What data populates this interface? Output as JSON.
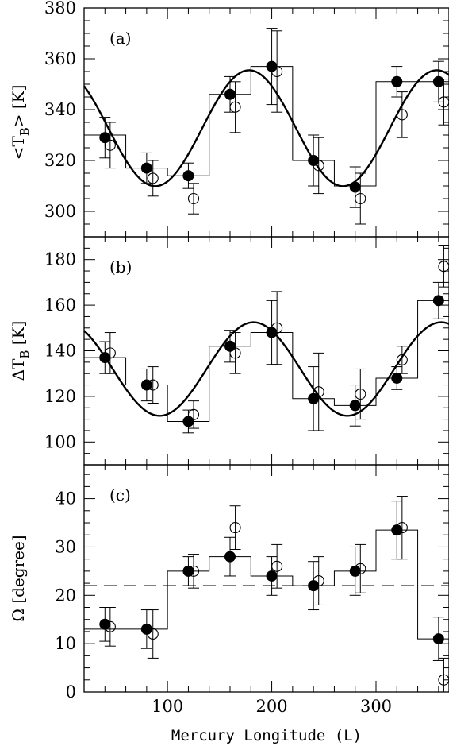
{
  "chart_data": [
    {
      "id": "a",
      "type": "scatter",
      "panel_label": "(a)",
      "ylabel": "<T_B> [K]",
      "ylim": [
        290,
        380
      ],
      "yticks": [
        300,
        320,
        340,
        360,
        380
      ],
      "xlim": [
        20,
        370
      ],
      "step": {
        "edges": [
          20,
          60,
          100,
          140,
          180,
          220,
          260,
          300,
          340,
          370
        ],
        "values": [
          330,
          317,
          314,
          346,
          357,
          320,
          310,
          351,
          351
        ]
      },
      "series": [
        {
          "marker": "filled",
          "x": [
            40,
            80,
            120,
            160,
            200,
            240,
            280,
            320,
            360
          ],
          "y": [
            329,
            317,
            314,
            346,
            357,
            320,
            309.5,
            351,
            351
          ],
          "yerr": [
            8,
            6,
            5,
            7,
            15,
            10,
            8,
            6,
            8
          ]
        },
        {
          "marker": "open",
          "x": [
            45,
            86,
            125,
            165,
            205,
            245,
            285,
            325,
            365
          ],
          "y": [
            326,
            313,
            305,
            341,
            355,
            318,
            305,
            338,
            343
          ],
          "yerr": [
            9,
            7,
            6,
            10,
            16,
            11,
            10,
            9,
            9
          ]
        }
      ],
      "fit": {
        "mean": 332.7,
        "amplitude": 22.8,
        "peak_x": 178.3,
        "period": 180
      }
    },
    {
      "id": "b",
      "type": "scatter",
      "panel_label": "(b)",
      "ylabel": "ΔT_B [K]",
      "ylim": [
        90,
        190
      ],
      "yticks": [
        100,
        120,
        140,
        160,
        180
      ],
      "xlim": [
        20,
        370
      ],
      "step": {
        "edges": [
          20,
          60,
          100,
          140,
          180,
          220,
          260,
          300,
          340,
          370
        ],
        "values": [
          137,
          125,
          109,
          142,
          148,
          119,
          116,
          128,
          162
        ]
      },
      "series": [
        {
          "marker": "filled",
          "x": [
            40,
            80,
            120,
            160,
            200,
            240,
            280,
            320,
            360
          ],
          "y": [
            137,
            125,
            109,
            142,
            148,
            119,
            116,
            128,
            162
          ],
          "yerr": [
            7,
            7,
            5,
            7,
            14,
            14,
            9,
            5,
            8
          ]
        },
        {
          "marker": "open",
          "x": [
            45,
            86,
            125,
            165,
            205,
            245,
            285,
            325,
            365
          ],
          "y": [
            139,
            125,
            112,
            139,
            150,
            122,
            121,
            136,
            177
          ],
          "yerr": [
            9,
            8,
            6,
            9,
            16,
            17,
            11,
            6,
            9
          ]
        }
      ],
      "fit": {
        "mean": 132.0,
        "amplitude": 20.5,
        "peak_x": 182.5,
        "period": 180
      }
    },
    {
      "id": "c",
      "type": "scatter",
      "panel_label": "(c)",
      "ylabel": "Ω [degree]",
      "ylim": [
        0,
        47
      ],
      "yticks": [
        0,
        10,
        20,
        30,
        40
      ],
      "xlim": [
        20,
        370
      ],
      "xticks": [
        100,
        200,
        300
      ],
      "xlabel": "Mercury Longitude (L)",
      "reference_line": 22,
      "step": {
        "edges": [
          20,
          60,
          100,
          140,
          180,
          220,
          260,
          300,
          340,
          370
        ],
        "values": [
          13,
          13,
          25,
          28,
          24,
          22,
          25,
          33.5,
          11
        ]
      },
      "series": [
        {
          "marker": "filled",
          "x": [
            40,
            80,
            120,
            160,
            200,
            240,
            280,
            320,
            360
          ],
          "y": [
            14,
            13,
            25,
            28,
            24,
            22,
            25,
            33.5,
            11
          ],
          "yerr": [
            3.5,
            4,
            3,
            4,
            4,
            5,
            5,
            6,
            4.5
          ]
        },
        {
          "marker": "open",
          "x": [
            45,
            86,
            125,
            165,
            205,
            245,
            285,
            325,
            365
          ],
          "y": [
            13.5,
            12,
            25,
            34,
            26,
            23,
            25.5,
            34,
            2.5
          ],
          "yerr": [
            4,
            5,
            3.5,
            4.5,
            4.5,
            5,
            5,
            6.5,
            4.5
          ]
        }
      ]
    }
  ],
  "y_axis_titles": {
    "a": {
      "prefix": "<T",
      "sub": "B",
      "suffix": "> [K]"
    },
    "b": {
      "prefix": "ΔT",
      "sub": "B",
      "suffix": " [K]"
    },
    "c": {
      "prefix": "Ω [degree]",
      "sub": "",
      "suffix": ""
    }
  }
}
